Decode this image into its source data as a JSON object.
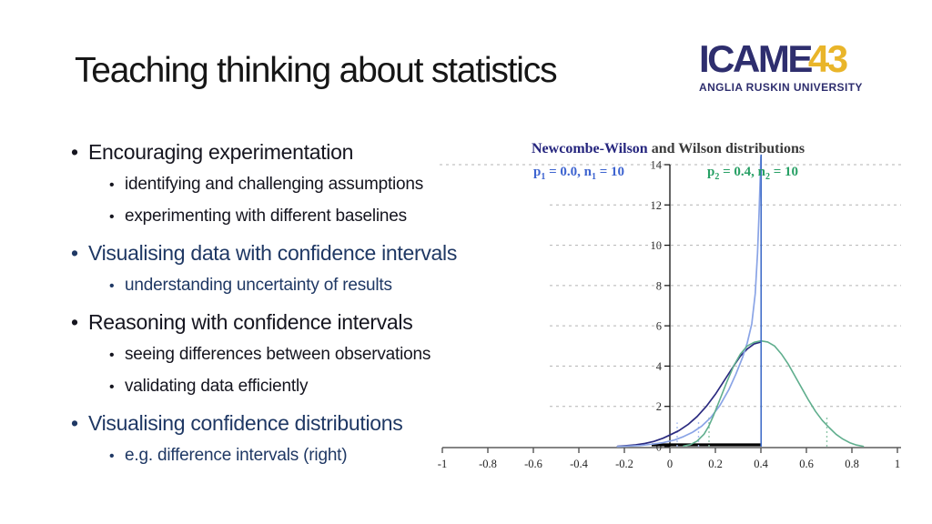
{
  "slide": {
    "title": "Teaching thinking about statistics"
  },
  "logo": {
    "brand": "ICAME",
    "brand_number": "43",
    "subtitle": "ANGLIA RUSKIN UNIVERSITY",
    "brand_color": "#2e2e6e",
    "number_color": "#e9b52a"
  },
  "bullets": [
    {
      "level": 1,
      "style": "dark",
      "text": "Encouraging experimentation"
    },
    {
      "level": 2,
      "style": "dark",
      "text": "identifying and challenging assumptions"
    },
    {
      "level": 2,
      "style": "dark",
      "text": "experimenting with different baselines"
    },
    {
      "level": 1,
      "style": "navy",
      "text": "Visualising data with confidence intervals"
    },
    {
      "level": 2,
      "style": "navy",
      "text": "understanding uncertainty of results"
    },
    {
      "level": 1,
      "style": "dark",
      "text": "Reasoning with confidence intervals"
    },
    {
      "level": 2,
      "style": "dark",
      "text": "seeing differences between observations"
    },
    {
      "level": 2,
      "style": "dark",
      "text": "validating data efficiently"
    },
    {
      "level": 1,
      "style": "navy",
      "text": "Visualising confidence distributions"
    },
    {
      "level": 2,
      "style": "navy",
      "text": "e.g. difference intervals (right)"
    }
  ],
  "chart_data": {
    "type": "line",
    "title_part1": "Newcombe-Wilson",
    "title_part2": " and Wilson distributions",
    "legend": [
      {
        "name": "distribution-1-label",
        "color": "#3e64d0",
        "parts": [
          "p",
          "1",
          " = 0.0, ",
          "n",
          "1",
          " = 10"
        ]
      },
      {
        "name": "distribution-2-label",
        "color": "#28a065",
        "parts": [
          "p",
          "2",
          " = 0.4, ",
          "n",
          "2",
          " = 10"
        ]
      }
    ],
    "xlabel": "",
    "ylabel": "",
    "xlim": [
      -1,
      1
    ],
    "ylim": [
      0,
      14
    ],
    "x_ticks": [
      -1,
      -0.8,
      -0.6,
      -0.4,
      -0.2,
      0,
      0.2,
      0.4,
      0.6,
      0.8,
      1
    ],
    "x_tick_labels": [
      "-1",
      "-0.8",
      "-0.6",
      "-0.4",
      "-0.2",
      "0",
      "0.2",
      "0.4",
      "0.6",
      "0.8",
      "1"
    ],
    "y_ticks": [
      0,
      2,
      4,
      6,
      8,
      10,
      12,
      14
    ],
    "grid": "horizontal dashed at y = 2,4,6,8,10,12,14",
    "axis_color": "#858585",
    "grid_color": "#b3b3b3",
    "series": [
      {
        "name": "newcombe-wilson-difference",
        "color": "#2b2b80",
        "width": 1.7,
        "points": [
          [
            -0.23,
            0.02
          ],
          [
            -0.19,
            0.05
          ],
          [
            -0.15,
            0.09
          ],
          [
            -0.11,
            0.16
          ],
          [
            -0.07,
            0.26
          ],
          [
            -0.03,
            0.42
          ],
          [
            0,
            0.58
          ],
          [
            0.04,
            0.8
          ],
          [
            0.08,
            1.1
          ],
          [
            0.12,
            1.5
          ],
          [
            0.16,
            2.0
          ],
          [
            0.2,
            2.6
          ],
          [
            0.24,
            3.3
          ],
          [
            0.28,
            4.0
          ],
          [
            0.31,
            4.5
          ],
          [
            0.34,
            4.85
          ],
          [
            0.37,
            5.1
          ],
          [
            0.4,
            5.2
          ]
        ]
      },
      {
        "name": "wilson-distribution-1-spike",
        "color": "#8aa4e6",
        "width": 1.7,
        "points": [
          [
            -0.23,
            0.01
          ],
          [
            -0.18,
            0.03
          ],
          [
            -0.13,
            0.06
          ],
          [
            -0.08,
            0.12
          ],
          [
            -0.03,
            0.2
          ],
          [
            0.02,
            0.33
          ],
          [
            0.06,
            0.5
          ],
          [
            0.1,
            0.72
          ],
          [
            0.14,
            1.02
          ],
          [
            0.18,
            1.45
          ],
          [
            0.22,
            2.05
          ],
          [
            0.26,
            2.85
          ],
          [
            0.29,
            3.6
          ],
          [
            0.32,
            4.45
          ],
          [
            0.34,
            5.15
          ],
          [
            0.36,
            6.1
          ],
          [
            0.375,
            7.6
          ],
          [
            0.385,
            9.6
          ],
          [
            0.392,
            11.6
          ],
          [
            0.397,
            13.4
          ],
          [
            0.4,
            14.4
          ]
        ]
      },
      {
        "name": "wilson-distribution-2",
        "color": "#5fae8d",
        "width": 1.6,
        "points": [
          [
            0.06,
            0.03
          ],
          [
            0.09,
            0.1
          ],
          [
            0.12,
            0.28
          ],
          [
            0.15,
            0.62
          ],
          [
            0.17,
            1.0
          ],
          [
            0.19,
            1.5
          ],
          [
            0.22,
            2.35
          ],
          [
            0.25,
            3.2
          ],
          [
            0.28,
            4.0
          ],
          [
            0.31,
            4.6
          ],
          [
            0.34,
            5.0
          ],
          [
            0.37,
            5.18
          ],
          [
            0.4,
            5.25
          ],
          [
            0.43,
            5.2
          ],
          [
            0.46,
            5.0
          ],
          [
            0.49,
            4.6
          ],
          [
            0.52,
            4.1
          ],
          [
            0.55,
            3.5
          ],
          [
            0.58,
            2.9
          ],
          [
            0.61,
            2.3
          ],
          [
            0.64,
            1.75
          ],
          [
            0.67,
            1.3
          ],
          [
            0.7,
            0.95
          ],
          [
            0.73,
            0.62
          ],
          [
            0.76,
            0.38
          ],
          [
            0.79,
            0.2
          ],
          [
            0.82,
            0.08
          ],
          [
            0.85,
            0.02
          ]
        ]
      }
    ],
    "vlines": [
      {
        "name": "observed-difference-line",
        "x": 0.401,
        "y_top": 14.5,
        "style": "solid",
        "color": "#3f6cc8"
      },
      {
        "name": "interval-bound",
        "x": 0.032,
        "y_top": 1.2,
        "style": "dotted",
        "color": "#a7bcee"
      },
      {
        "name": "interval-bound",
        "x": 0.126,
        "y_top": 1.3,
        "style": "dotted",
        "color": "#a7bcee"
      },
      {
        "name": "interval-bound",
        "x": 0.172,
        "y_top": 1.45,
        "style": "dotted",
        "color": "#8fc5a9"
      },
      {
        "name": "interval-bound",
        "x": 0.69,
        "y_top": 1.5,
        "style": "dotted",
        "color": "#8fc5a9"
      }
    ],
    "zero_line": {
      "x1": -0.08,
      "x2": 0.4,
      "color": "#000000"
    }
  }
}
